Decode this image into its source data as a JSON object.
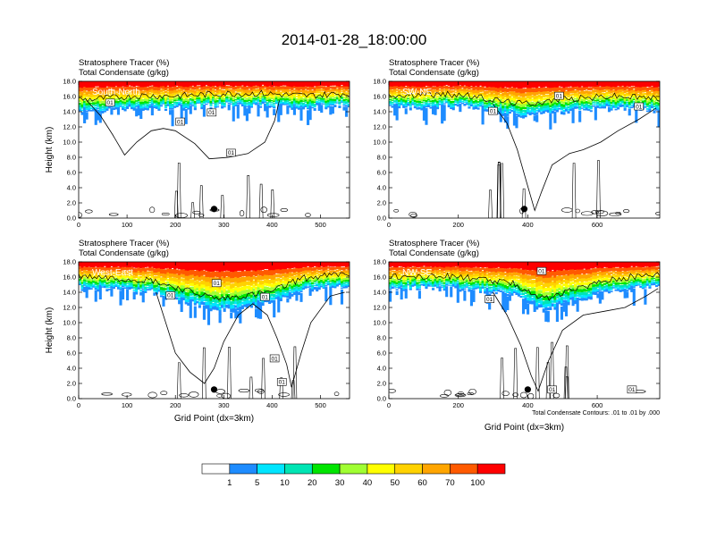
{
  "figure_title": "2014-01-28_18:00:00",
  "footnote": "Total Condensate Contours: .01 to .01 by .000",
  "colors": {
    "band": [
      "#ffffff",
      "#1e8cff",
      "#00e5ff",
      "#00e5b4",
      "#00e500",
      "#a0ff32",
      "#ffff00",
      "#ffd200",
      "#ffa500",
      "#ff5a00",
      "#ff0000"
    ],
    "contour": "#000000"
  },
  "chart_data": [
    {
      "type": "heatmap",
      "panel": "top-left",
      "section": "South-North",
      "top_labels": [
        "Stratosphere Tracer   (%)",
        "Total Condensate   (g/kg)"
      ],
      "ylabel": "Height (km)",
      "xlabel": "",
      "xlim": [
        0,
        560
      ],
      "ylim": [
        0,
        18
      ],
      "xticks": [
        "0",
        "100",
        "200",
        "300",
        "400",
        "500"
      ],
      "xtick_values": [
        0,
        100,
        200,
        300,
        400,
        500
      ],
      "yticks": [
        "0.0",
        "2.0",
        "4.0",
        "6.0",
        "8.0",
        "10.0",
        "12.0",
        "14.0",
        "16.0",
        "18.0"
      ],
      "contour_labels": [
        "01",
        "01",
        "01",
        "01"
      ],
      "contour_label_pos": [
        [
          65,
          15.2
        ],
        [
          210,
          12.7
        ],
        [
          275,
          13.9
        ],
        [
          315,
          8.6
        ]
      ],
      "marker_x": 280,
      "marker_y": 1.2,
      "tracer_base_km": 15.8,
      "cloud": [
        [
          20,
          14
        ],
        [
          120,
          14.5
        ],
        [
          210,
          14.5
        ],
        [
          300,
          14.8
        ],
        [
          380,
          14.8
        ],
        [
          470,
          14.5
        ],
        [
          550,
          14.8
        ]
      ],
      "cloud_outline": [
        [
          15,
          15.6
        ],
        [
          45,
          13.5
        ],
        [
          70,
          11
        ],
        [
          95,
          8.3
        ],
        [
          120,
          10
        ],
        [
          150,
          11.5
        ],
        [
          175,
          11.8
        ],
        [
          200,
          11.5
        ],
        [
          240,
          9.8
        ],
        [
          270,
          7.8
        ],
        [
          310,
          8
        ],
        [
          350,
          8.5
        ],
        [
          385,
          10
        ],
        [
          405,
          12.8
        ],
        [
          415,
          15.5
        ]
      ]
    },
    {
      "type": "heatmap",
      "panel": "top-right",
      "section": "SW-NE",
      "top_labels": [
        "Stratosphere Tracer   (%)",
        "Total Condensate   (g/kg)"
      ],
      "ylabel": "",
      "xlabel": "",
      "xlim": [
        0,
        780
      ],
      "ylim": [
        0,
        18
      ],
      "xticks": [
        "0",
        "200",
        "400",
        "600"
      ],
      "xtick_values": [
        0,
        200,
        400,
        600
      ],
      "yticks": [
        "0.0",
        "2.0",
        "4.0",
        "6.0",
        "8.0",
        "10.0",
        "12.0",
        "14.0",
        "16.0",
        "18.0"
      ],
      "contour_labels": [
        "01",
        "01",
        "01"
      ],
      "contour_label_pos": [
        [
          490,
          16.1
        ],
        [
          300,
          14.1
        ],
        [
          720,
          14.7
        ]
      ],
      "marker_x": 390,
      "marker_y": 1.2,
      "tracer_base_km": 15.6,
      "cloud": [
        [
          20,
          14.5
        ],
        [
          200,
          14.7
        ],
        [
          300,
          14
        ],
        [
          380,
          13.5
        ],
        [
          500,
          14
        ],
        [
          640,
          14.5
        ],
        [
          760,
          14.2
        ]
      ],
      "cloud_outline": [
        [
          300,
          15
        ],
        [
          340,
          12.5
        ],
        [
          370,
          9
        ],
        [
          395,
          5
        ],
        [
          420,
          1
        ],
        [
          440,
          3.5
        ],
        [
          470,
          7
        ],
        [
          520,
          8.5
        ],
        [
          560,
          9
        ],
        [
          610,
          10
        ],
        [
          660,
          11.5
        ],
        [
          720,
          13
        ],
        [
          770,
          14.5
        ]
      ]
    },
    {
      "type": "heatmap",
      "panel": "bottom-left",
      "section": "West-East",
      "top_labels": [
        "Stratosphere Tracer   (%)",
        "Total Condensate   (g/kg)"
      ],
      "ylabel": "Height (km)",
      "xlabel": "Grid Point (dx=3km)",
      "xlim": [
        0,
        560
      ],
      "ylim": [
        0,
        18
      ],
      "xticks": [
        "0",
        "100",
        "200",
        "300",
        "400",
        "500"
      ],
      "xtick_values": [
        0,
        100,
        200,
        300,
        400,
        500
      ],
      "yticks": [
        "0.0",
        "2.0",
        "4.0",
        "6.0",
        "8.0",
        "10.0",
        "12.0",
        "14.0",
        "16.0",
        "18.0"
      ],
      "contour_labels": [
        "01",
        "01",
        "01",
        "01",
        "01"
      ],
      "contour_label_pos": [
        [
          190,
          13.6
        ],
        [
          285,
          15.2
        ],
        [
          385,
          13.4
        ],
        [
          405,
          5.3
        ],
        [
          420,
          2.2
        ]
      ],
      "marker_x": 280,
      "marker_y": 1.2,
      "tracer_base_km": 15.6,
      "cloud": [
        [
          20,
          14.5
        ],
        [
          150,
          14
        ],
        [
          230,
          12.5
        ],
        [
          290,
          11.5
        ],
        [
          350,
          12
        ],
        [
          400,
          12.5
        ],
        [
          460,
          14.2
        ],
        [
          550,
          14.8
        ]
      ],
      "cloud_outline": [
        [
          160,
          14
        ],
        [
          180,
          10
        ],
        [
          200,
          6
        ],
        [
          230,
          3.5
        ],
        [
          260,
          2
        ],
        [
          280,
          4
        ],
        [
          300,
          7.5
        ],
        [
          330,
          11
        ],
        [
          360,
          12.5
        ],
        [
          390,
          11
        ],
        [
          410,
          8
        ],
        [
          430,
          4.5
        ],
        [
          440,
          1.5
        ],
        [
          460,
          6
        ],
        [
          480,
          10
        ],
        [
          520,
          13.5
        ],
        [
          550,
          14
        ]
      ]
    },
    {
      "type": "heatmap",
      "panel": "bottom-right",
      "section": "NW-SE",
      "top_labels": [
        "Stratosphere Tracer   (%)",
        "Total Condensate   (g/kg)"
      ],
      "ylabel": "",
      "xlabel": "Grid Point (dx=3km)",
      "xlim": [
        0,
        780
      ],
      "ylim": [
        0,
        18
      ],
      "xticks": [
        "0",
        "200",
        "400",
        "600"
      ],
      "xtick_values": [
        0,
        200,
        400,
        600
      ],
      "yticks": [
        "0.0",
        "2.0",
        "4.0",
        "6.0",
        "8.0",
        "10.0",
        "12.0",
        "14.0",
        "16.0",
        "18.0"
      ],
      "contour_labels": [
        "01",
        "01",
        "01",
        "01"
      ],
      "contour_label_pos": [
        [
          440,
          16.8
        ],
        [
          290,
          13.1
        ],
        [
          470,
          1.2
        ],
        [
          700,
          1.2
        ]
      ],
      "marker_x": 400,
      "marker_y": 1.2,
      "tracer_base_km": 15.4,
      "cloud": [
        [
          20,
          14.5
        ],
        [
          200,
          14.5
        ],
        [
          360,
          13.5
        ],
        [
          450,
          11.5
        ],
        [
          520,
          12.5
        ],
        [
          620,
          14
        ],
        [
          760,
          14.8
        ]
      ],
      "cloud_outline": [
        [
          300,
          14
        ],
        [
          340,
          11
        ],
        [
          380,
          7
        ],
        [
          410,
          3
        ],
        [
          430,
          1
        ],
        [
          460,
          5
        ],
        [
          500,
          9
        ],
        [
          560,
          11
        ],
        [
          620,
          11.5
        ],
        [
          680,
          12
        ],
        [
          740,
          13.5
        ],
        [
          775,
          14.5
        ]
      ]
    }
  ],
  "colorbar": {
    "labels": [
      "1",
      "5",
      "10",
      "20",
      "30",
      "40",
      "50",
      "60",
      "70",
      "100"
    ]
  }
}
